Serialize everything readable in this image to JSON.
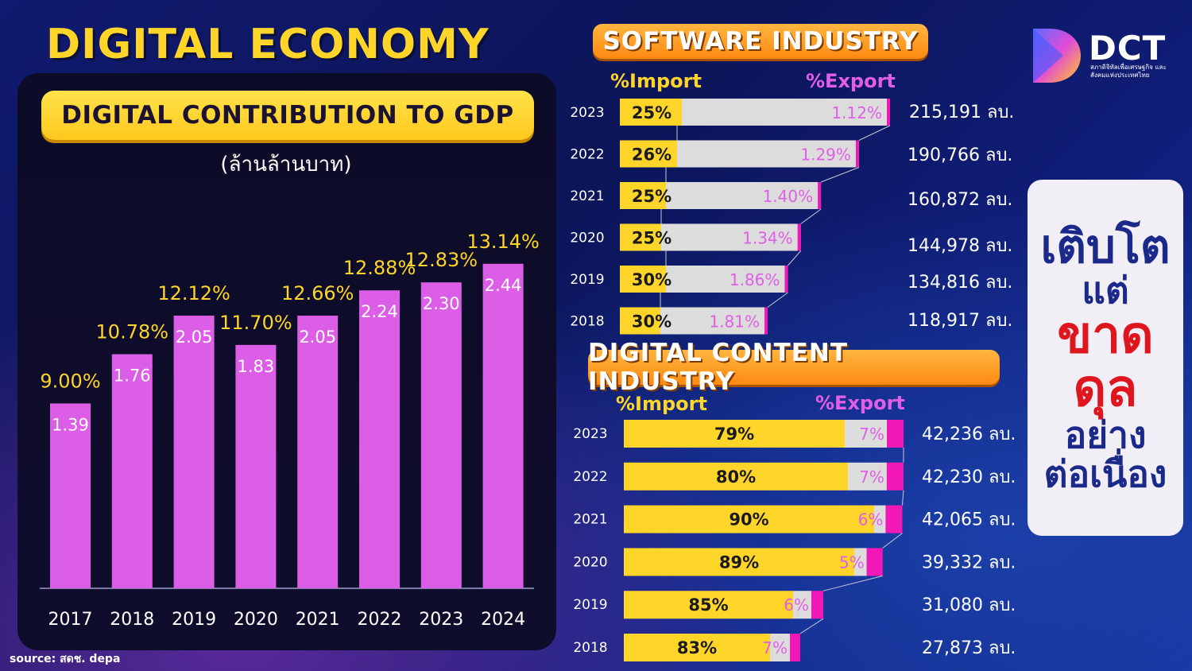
{
  "page": {
    "title": "DIGITAL ECONOMY",
    "source": "source: สดช. depa",
    "logo": {
      "text": "DCT",
      "subtitle": "สภาดิจิทัลเพื่อเศรษฐกิจ และสังคมแห่งประเทศไทย"
    },
    "side_message": [
      "เติบโต",
      "แต่",
      "ขาด",
      "ดุล",
      "อย่าง",
      "ต่อเนื่อง"
    ],
    "colors": {
      "bar_purple": "#dd5ee6",
      "yellow": "#ffd52a",
      "pink_export": "#e15ee6",
      "magenta": "#f218b8",
      "grey": "#dcdcdc",
      "orange_banner": "#ff9a20"
    }
  },
  "chart_data": [
    {
      "type": "bar",
      "title": "DIGITAL CONTRIBUTION TO GDP",
      "unit": "(ล้านล้านบาท)",
      "categories": [
        "2017",
        "2018",
        "2019",
        "2020",
        "2021",
        "2022",
        "2023",
        "2024"
      ],
      "values": [
        1.39,
        1.76,
        2.05,
        1.83,
        2.05,
        2.24,
        2.3,
        2.44
      ],
      "value_labels": [
        "1.39",
        "1.76",
        "2.05",
        "1.83",
        "2.05",
        "2.24",
        "2.30",
        "2.44"
      ],
      "percent_labels": [
        "9.00%",
        "10.78%",
        "12.12%",
        "11.70%",
        "12.66%",
        "12.88%",
        "12.83%",
        "13.14%"
      ],
      "ylim": [
        0,
        2.6
      ],
      "grid": false
    },
    {
      "type": "bar",
      "title": "SOFTWARE INDUSTRY",
      "headers": {
        "import": "%Import",
        "export": "%Export"
      },
      "categories": [
        "2023",
        "2022",
        "2021",
        "2020",
        "2019",
        "2018"
      ],
      "import_pct": [
        "25%",
        "26%",
        "25%",
        "25%",
        "30%",
        "30%"
      ],
      "export_pct": [
        "1.12%",
        "1.29%",
        "1.40%",
        "1.34%",
        "1.86%",
        "1.81%"
      ],
      "market_values": [
        215191,
        190766,
        160872,
        144978,
        134816,
        118917
      ],
      "market_labels": [
        "215,191 ลบ.",
        "190,766 ลบ.",
        "160,872 ลบ.",
        "144,978 ลบ.",
        "134,816 ลบ.",
        "118,917 ลบ."
      ]
    },
    {
      "type": "bar",
      "title": "DIGITAL CONTENT INDUSTRY",
      "headers": {
        "import": "%Import",
        "export": "%Export"
      },
      "categories": [
        "2023",
        "2022",
        "2021",
        "2020",
        "2019",
        "2018"
      ],
      "import_pct": [
        "79%",
        "80%",
        "90%",
        "89%",
        "85%",
        "83%"
      ],
      "export_pct": [
        "7%",
        "7%",
        "6%",
        "5%",
        "6%",
        "7%"
      ],
      "market_values": [
        42236,
        42230,
        42065,
        39332,
        31080,
        27873
      ],
      "market_labels": [
        "42,236 ลบ.",
        "42,230 ลบ.",
        "42,065  ลบ.",
        "39,332 ลบ.",
        "31,080 ลบ.",
        "27,873 ลบ."
      ]
    }
  ]
}
